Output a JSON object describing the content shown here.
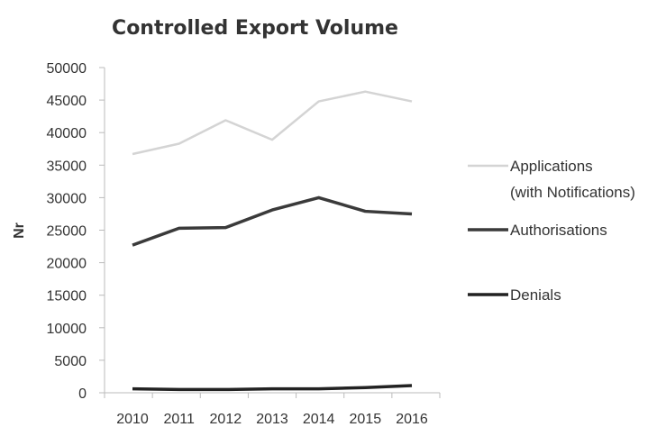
{
  "chart_data": {
    "type": "line",
    "title": "Controlled Export Volume",
    "xlabel": "",
    "ylabel": "Nr",
    "categories": [
      "2010",
      "2011",
      "2012",
      "2013",
      "2014",
      "2015",
      "2016"
    ],
    "ylim": [
      0,
      50000
    ],
    "yticks": [
      "0",
      "5000",
      "10000",
      "15000",
      "20000",
      "25000",
      "30000",
      "35000",
      "40000",
      "45000",
      "50000"
    ],
    "grid": false,
    "legend_position": "right",
    "series": [
      {
        "name": "Applications",
        "name_line2": "(with Notifications)",
        "color": "#d4d4d4",
        "values": [
          36700,
          38300,
          41900,
          38900,
          44800,
          46300,
          44800
        ]
      },
      {
        "name": "Authorisations",
        "color": "#3a3a3a",
        "values": [
          22700,
          25300,
          25400,
          28100,
          30000,
          27900,
          27500
        ]
      },
      {
        "name": "Denials",
        "color": "#222222",
        "values": [
          600,
          500,
          500,
          600,
          600,
          800,
          1100
        ]
      }
    ]
  }
}
